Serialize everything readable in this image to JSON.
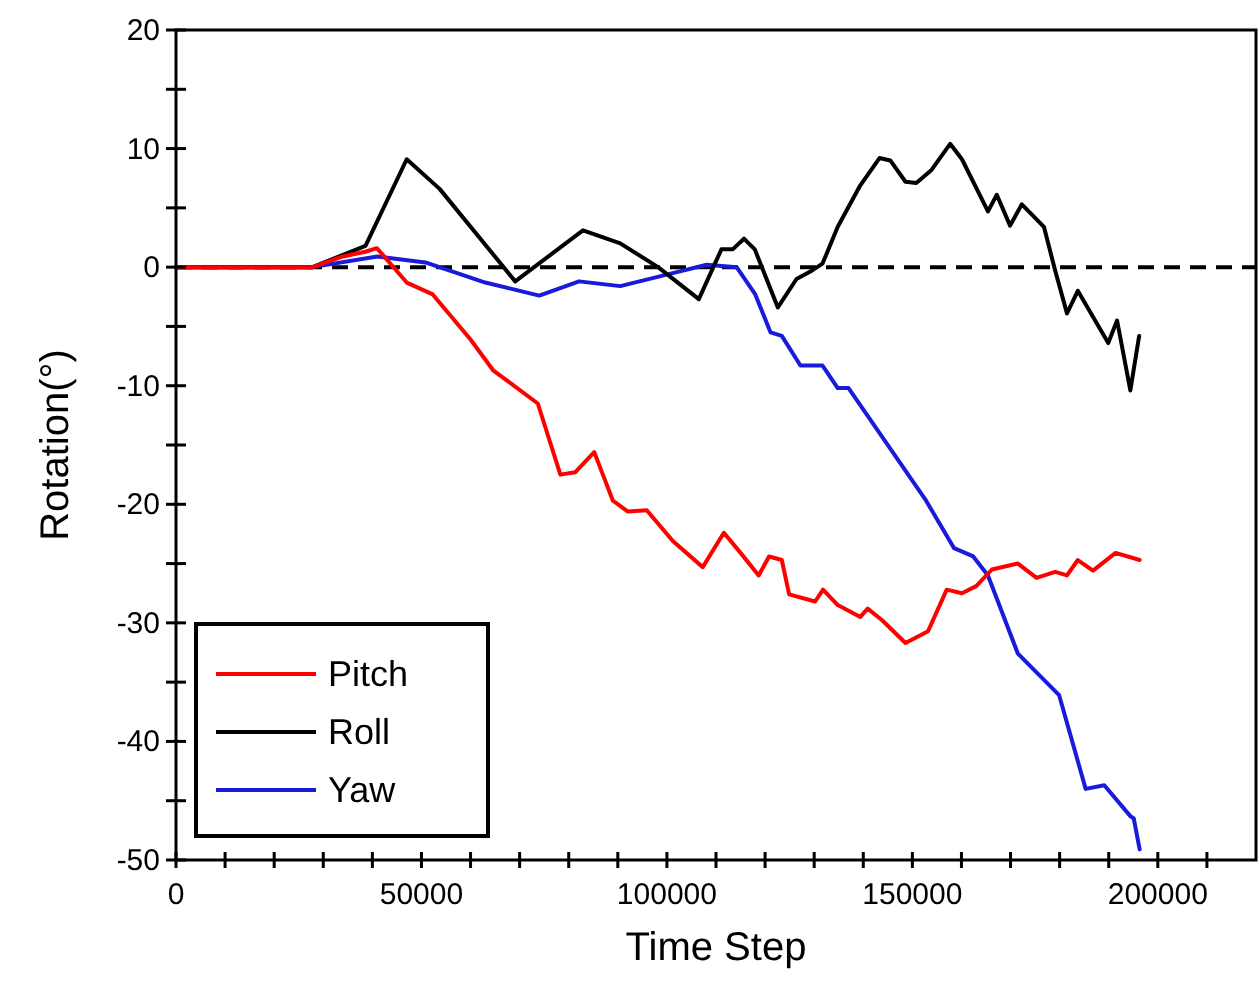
{
  "chart_data": {
    "type": "line",
    "xlabel": "Time Step",
    "ylabel": "Rotation(°)",
    "xlim": [
      0,
      220000
    ],
    "ylim": [
      -50,
      20
    ],
    "xticks": [
      0,
      {
        "value": 10000,
        "label": null
      },
      {
        "value": 20000,
        "label": null
      },
      {
        "value": 30000,
        "label": null
      },
      {
        "value": 40000,
        "label": null
      },
      50000,
      {
        "value": 60000,
        "label": null
      },
      {
        "value": 70000,
        "label": null
      },
      {
        "value": 80000,
        "label": null
      },
      {
        "value": 90000,
        "label": null
      },
      100000,
      {
        "value": 110000,
        "label": null
      },
      {
        "value": 120000,
        "label": null
      },
      {
        "value": 130000,
        "label": null
      },
      {
        "value": 140000,
        "label": null
      },
      150000,
      {
        "value": 160000,
        "label": null
      },
      {
        "value": 170000,
        "label": null
      },
      {
        "value": 180000,
        "label": null
      },
      {
        "value": 190000,
        "label": null
      },
      200000,
      {
        "value": 210000,
        "label": null
      }
    ],
    "yticks": [
      -50,
      {
        "value": -45,
        "label": null
      },
      -40,
      {
        "value": -35,
        "label": null
      },
      -30,
      {
        "value": -25,
        "label": null
      },
      -20,
      {
        "value": -15,
        "label": null
      },
      -10,
      {
        "value": -5,
        "label": null
      },
      0,
      {
        "value": 5,
        "label": null
      },
      10,
      {
        "value": 15,
        "label": null
      },
      20
    ],
    "grid": false,
    "legend": "bottom left",
    "line_style": "solid",
    "ref_lines": [
      {
        "axis": "y",
        "value": 0,
        "color": "#000000",
        "line_style": "dashed"
      }
    ],
    "series": [
      {
        "name": "Pitch",
        "color": "#ff0000",
        "x": [
          0,
          27800,
          34000,
          38600,
          40900,
          42000,
          47000,
          52300,
          60000,
          64600,
          73700,
          78300,
          81300,
          85200,
          89000,
          92000,
          95900,
          101200,
          107300,
          111600,
          115000,
          118700,
          120800,
          123400,
          124900,
          130200,
          131800,
          134800,
          139400,
          140900,
          143900,
          148600,
          153200,
          157000,
          160100,
          163000,
          166200,
          171500,
          175300,
          179100,
          181500,
          183700,
          186800,
          191400,
          196300
        ],
        "values": [
          0,
          0,
          0.9,
          1.3,
          1.6,
          1.1,
          -1.3,
          -2.3,
          -6.1,
          -8.7,
          -11.5,
          -17.5,
          -17.3,
          -15.6,
          -19.7,
          -20.6,
          -20.5,
          -23.1,
          -25.3,
          -22.4,
          -24.1,
          -26.0,
          -24.4,
          -24.7,
          -27.6,
          -28.2,
          -27.2,
          -28.5,
          -29.5,
          -28.8,
          -29.8,
          -31.7,
          -30.7,
          -27.2,
          -27.5,
          -26.9,
          -25.5,
          -25.0,
          -26.2,
          -25.7,
          -26.0,
          -24.7,
          -25.6,
          -24.1,
          -24.7
        ]
      },
      {
        "name": "Roll",
        "color": "#000000",
        "x": [
          0,
          27800,
          38600,
          47000,
          53700,
          69100,
          82900,
          90500,
          98200,
          106500,
          111100,
          113400,
          115700,
          117900,
          122600,
          126400,
          129500,
          131700,
          134800,
          139400,
          143300,
          145500,
          148600,
          150800,
          153900,
          157700,
          160100,
          165400,
          167200,
          169900,
          172300,
          176800,
          179100,
          181500,
          183700,
          189900,
          191700,
          194400,
          196200
        ],
        "values": [
          0,
          0,
          1.8,
          9.1,
          6.6,
          -1.2,
          3.1,
          2.0,
          0,
          -2.7,
          1.5,
          1.5,
          2.4,
          1.5,
          -3.4,
          -1.0,
          -0.3,
          0.3,
          3.4,
          6.9,
          9.2,
          9.0,
          7.2,
          7.1,
          8.2,
          10.4,
          9.1,
          4.7,
          6.1,
          3.5,
          5.3,
          3.4,
          -0.3,
          -3.9,
          -2.0,
          -6.4,
          -4.5,
          -10.4,
          -5.8
        ]
      },
      {
        "name": "Yaw",
        "color": "#1a1adb",
        "x": [
          0,
          27800,
          41000,
          50800,
          63000,
          74000,
          82100,
          90500,
          101200,
          108100,
          114200,
          118000,
          121100,
          123400,
          127200,
          131700,
          134800,
          137000,
          152800,
          158500,
          162400,
          165400,
          171500,
          179900,
          185300,
          189100,
          194400,
          195100,
          196300
        ],
        "values": [
          0,
          0,
          0.9,
          0.4,
          -1.3,
          -2.4,
          -1.2,
          -1.6,
          -0.5,
          0.2,
          0,
          -2.3,
          -5.5,
          -5.8,
          -8.3,
          -8.3,
          -10.2,
          -10.2,
          -19.7,
          -23.7,
          -24.4,
          -26.0,
          -32.6,
          -36.1,
          -44.0,
          -43.7,
          -46.3,
          -46.5,
          -49.1
        ]
      }
    ]
  }
}
